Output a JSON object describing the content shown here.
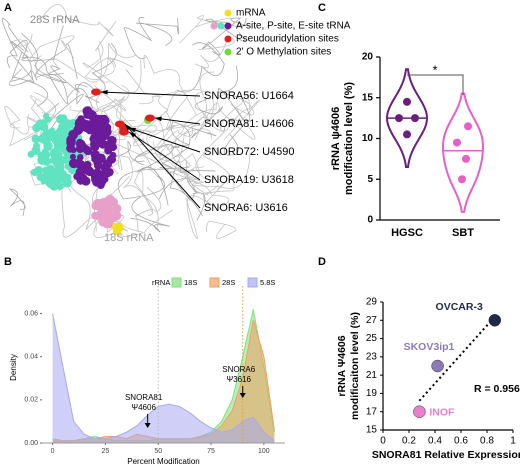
{
  "panel_a": {
    "panel_label": "A",
    "label_top": "28S rRNA",
    "label_bottom": "18S rRNA",
    "legend": [
      {
        "text": "mRNA",
        "colors": [
          "#f0e020"
        ]
      },
      {
        "text": "A-site, P-site, E-site tRNA",
        "colors": [
          "#e8a0c8",
          "#5fe3c0",
          "#6a1b9a"
        ]
      },
      {
        "text": "Pseudouridylation sites",
        "colors": [
          "#e0201c"
        ]
      },
      {
        "text": "2' O Methylation sites",
        "colors": [
          "#6fdc3a"
        ]
      }
    ],
    "sites": [
      "SNORA56: U1664",
      "SNORA81: U4606",
      "SNORD72: U4590",
      "SNORA19: U3618",
      "SNORA6: U3616"
    ]
  },
  "chart_data": [
    {
      "type": "density",
      "panel_label": "B",
      "xlabel": "Percent Modification",
      "ylabel": "Density",
      "legend_title": "rRNA",
      "x": [
        0,
        5,
        10,
        15,
        20,
        25,
        30,
        35,
        40,
        45,
        50,
        55,
        60,
        65,
        70,
        75,
        80,
        85,
        90,
        95,
        100,
        105
      ],
      "series": [
        {
          "name": "18S",
          "color": "#7fe07f",
          "values": [
            0.002,
            0.001,
            0.001,
            0.002,
            0.003,
            0.002,
            0.001,
            0.001,
            0.001,
            0.001,
            0.002,
            0.002,
            0.002,
            0.002,
            0.003,
            0.005,
            0.01,
            0.02,
            0.04,
            0.062,
            0.035,
            0.005
          ]
        },
        {
          "name": "28S",
          "color": "#f0a060",
          "values": [
            0.001,
            0.001,
            0.001,
            0.002,
            0.002,
            0.003,
            0.003,
            0.002,
            0.004,
            0.003,
            0.002,
            0.002,
            0.002,
            0.002,
            0.003,
            0.004,
            0.008,
            0.015,
            0.03,
            0.057,
            0.04,
            0.006
          ]
        },
        {
          "name": "5.8S",
          "color": "#a8a8f0",
          "values": [
            0.06,
            0.035,
            0.01,
            0.004,
            0.002,
            0.002,
            0.003,
            0.005,
            0.008,
            0.013,
            0.017,
            0.018,
            0.017,
            0.014,
            0.01,
            0.007,
            0.005,
            0.006,
            0.01,
            0.012,
            0.005,
            0.001
          ]
        }
      ],
      "xlim": [
        -5,
        110
      ],
      "xticks": [
        0,
        25,
        50,
        75,
        100
      ],
      "ylim": [
        0,
        0.07
      ],
      "yticks": [
        {
          "value": 0,
          "label": "0.00"
        },
        {
          "value": 0.02,
          "label": "0.02"
        },
        {
          "value": 0.04,
          "label": "0.04"
        },
        {
          "value": 0.06,
          "label": "0.06"
        }
      ],
      "reference_lines": [
        {
          "x": 50,
          "color": "#bbbbbb"
        },
        {
          "x": 90,
          "color": "#d9a441"
        }
      ],
      "annotations": [
        {
          "lines": [
            "SNORA81",
            "Ψ4606"
          ],
          "x": 45
        },
        {
          "lines": [
            "SNORA6",
            "Ψ3616"
          ],
          "x": 90
        }
      ]
    },
    {
      "type": "violin",
      "panel_label": "C",
      "ylabel": [
        "rRNA ψ4606",
        "modification level (%)"
      ],
      "categories": [
        "HGSC",
        "SBT"
      ],
      "colors": [
        "#6b1f7c",
        "#e95fc9"
      ],
      "values": [
        [
          14.5,
          12.5,
          12.5,
          10.5
        ],
        [
          11.5,
          9.5,
          7.5,
          5
        ]
      ],
      "ylim": [
        0,
        20
      ],
      "yticks": [
        0,
        5,
        10,
        15,
        20
      ],
      "significance": {
        "text": "*",
        "pair": [
          0,
          1
        ]
      }
    },
    {
      "type": "scatter",
      "panel_label": "D",
      "xlabel": "SNORA81 Relative Expression",
      "ylabel": [
        "rRNA Ψ4606",
        "modificaiton level (%)"
      ],
      "series": [
        {
          "name": "INOF",
          "color": "#e87fcf",
          "x": [
            0.28
          ],
          "values": [
            17
          ]
        },
        {
          "name": "SKOV3ip1",
          "color": "#8b7bb5",
          "x": [
            0.42
          ],
          "values": [
            22
          ]
        },
        {
          "name": "OVCAR-3",
          "color": "#1f2a4a",
          "x": [
            0.86
          ],
          "values": [
            27
          ]
        }
      ],
      "xlim": [
        0,
        1
      ],
      "xticks": [
        0,
        0.2,
        0.4,
        0.6,
        0.8,
        1
      ],
      "ylim": [
        15,
        29
      ],
      "yticks": [
        15,
        17,
        19,
        21,
        23,
        25,
        27,
        29
      ],
      "trendline": true,
      "annotation": "R = 0.956"
    }
  ]
}
